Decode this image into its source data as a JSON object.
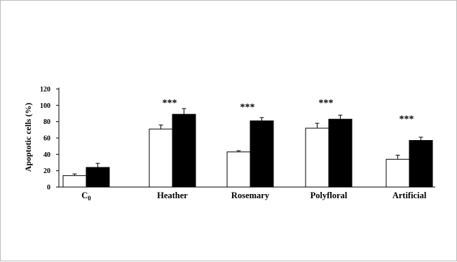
{
  "chart_data": {
    "type": "bar",
    "title": "",
    "xlabel": "",
    "ylabel": "Apoptotic cells (%)",
    "ylim": [
      0,
      120
    ],
    "yticks": [
      0,
      20,
      40,
      60,
      80,
      100,
      120
    ],
    "categories": [
      "C0",
      "Heather",
      "Rosemary",
      "Polyfloral",
      "Artificial"
    ],
    "category_labels": [
      {
        "base": "C",
        "sub": "0"
      },
      {
        "base": "Heather",
        "sub": ""
      },
      {
        "base": "Rosemary",
        "sub": ""
      },
      {
        "base": "Polyfloral",
        "sub": ""
      },
      {
        "base": "Artificial",
        "sub": ""
      }
    ],
    "series": [
      {
        "fill": "#ffffff",
        "values": [
          14,
          71,
          43,
          72,
          34
        ],
        "errors": [
          2,
          5,
          1.5,
          6,
          5
        ]
      },
      {
        "fill": "#000000",
        "values": [
          24,
          89,
          81,
          83,
          57
        ],
        "errors": [
          5,
          7,
          4,
          5,
          4
        ]
      }
    ],
    "annotations": [
      "",
      "***",
      "***",
      "***",
      "***"
    ],
    "grid": false,
    "legend": "none"
  }
}
